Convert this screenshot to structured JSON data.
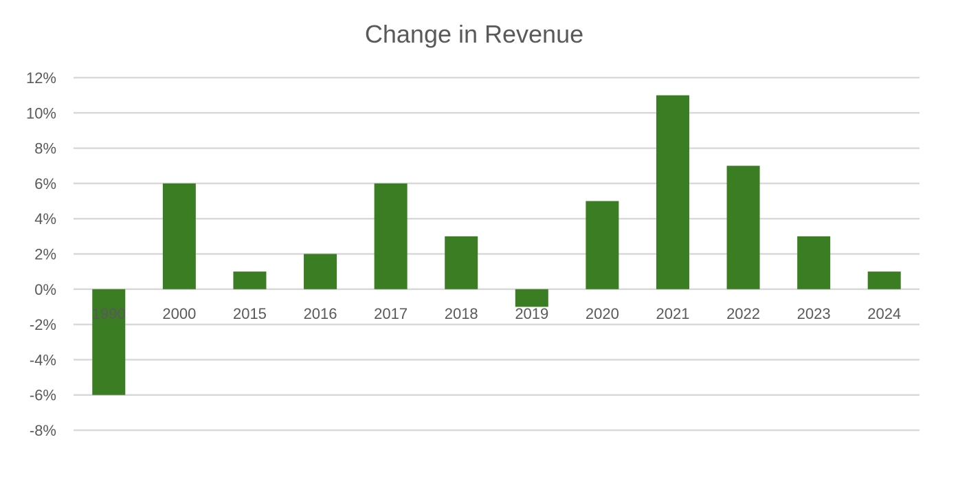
{
  "chart_data": {
    "type": "bar",
    "title": "Change in Revenue",
    "xlabel": "",
    "ylabel": "",
    "categories": [
      "1990",
      "2000",
      "2015",
      "2016",
      "2017",
      "2018",
      "2019",
      "2020",
      "2021",
      "2022",
      "2023",
      "2024"
    ],
    "values": [
      -6,
      6,
      1,
      2,
      6,
      3,
      -1,
      5,
      11,
      7,
      3,
      1
    ],
    "value_unit": "%",
    "ylim": [
      -8,
      12
    ],
    "yticks": [
      12,
      10,
      8,
      6,
      4,
      2,
      0,
      -2,
      -4,
      -6,
      -8
    ],
    "ytick_labels": [
      "12%",
      "10%",
      "8%",
      "6%",
      "4%",
      "2%",
      "0%",
      "-2%",
      "-4%",
      "-6%",
      "-8%"
    ],
    "grid": true,
    "legend": "none",
    "bar_color": "#3B7D23",
    "grid_color": "#D9D9D9",
    "text_color": "#595959"
  }
}
